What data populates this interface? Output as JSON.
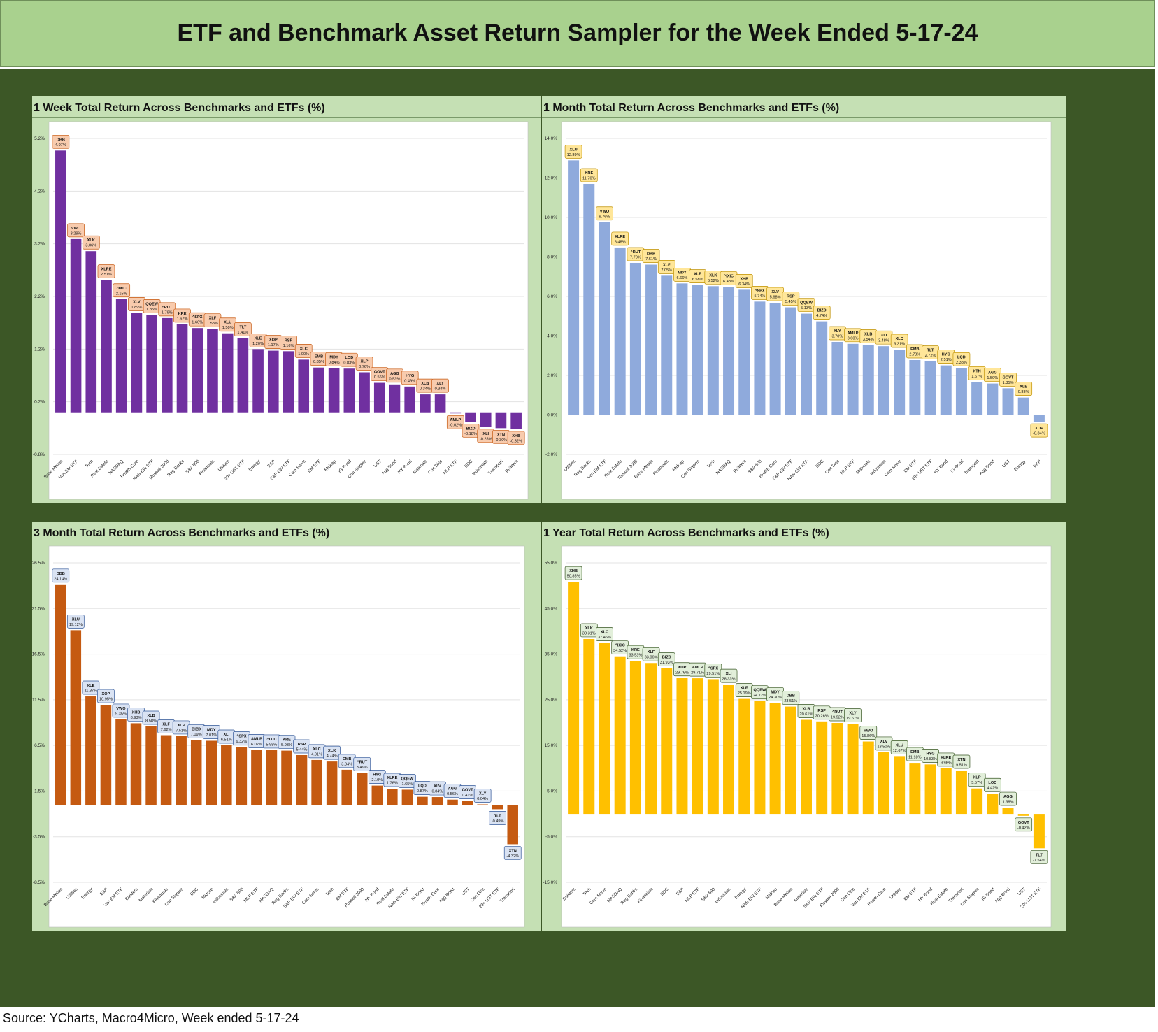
{
  "title": "ETF and Benchmark Asset Return Sampler for the Week Ended 5-17-24",
  "source": "Source: YCharts, Macro4Micro, Week ended 5-17-24",
  "colors": {
    "banner": "#a9d18e",
    "background": "#3c5726",
    "panel": "#c5e0b4"
  },
  "chart_data": [
    {
      "type": "bar",
      "title": "1 Week Total Return Across Benchmarks and ETFs (%)",
      "color": "#7030a0",
      "label_fill": "#f8cbad",
      "label_border": "#c65911",
      "ylim": [
        -0.8,
        5.2
      ],
      "yticks": [
        "-0.8%",
        "0.2%",
        "1.2%",
        "2.2%",
        "3.2%",
        "4.2%",
        "5.2%"
      ],
      "ytick_values": [
        -0.8,
        0.2,
        1.2,
        2.2,
        3.2,
        4.2,
        5.2
      ],
      "categories": [
        "Base Metals",
        "Van EM ETF",
        "Tech",
        "Real Estate",
        "NASDAQ",
        "Health Care",
        "NAS-EW ETF",
        "Russell 2000",
        "Reg Banks",
        "S&P 500",
        "Financials",
        "Utilities",
        "20+ UST ETF",
        "Energy",
        "E&P",
        "S&P EW ETF",
        "Com Servc",
        "EM ETF",
        "Midcap",
        "IG Bond",
        "Con Staples",
        "UST",
        "Agg Bond",
        "HY Bond",
        "Materials",
        "Con Disc",
        "MLP ETF",
        "BDC",
        "Industrials",
        "Transport",
        "Builders"
      ],
      "tickers": [
        "DBB",
        "VWO",
        "XLK",
        "XLRE",
        "^IXIC",
        "XLV",
        "QQEW",
        "^RUT",
        "KRE",
        "^SPX",
        "XLF",
        "XLU",
        "TLT",
        "XLE",
        "XOP",
        "RSP",
        "XLC",
        "EMB",
        "MDY",
        "LQD",
        "XLP",
        "GOVT",
        "AGG",
        "HYG",
        "XLB",
        "XLY",
        "AMLP",
        "BIZD",
        "XLI",
        "XTN",
        "XHB"
      ],
      "values": [
        4.97,
        3.29,
        3.06,
        2.51,
        2.15,
        1.89,
        1.85,
        1.79,
        1.67,
        1.6,
        1.58,
        1.5,
        1.41,
        1.2,
        1.17,
        1.16,
        1.0,
        0.85,
        0.84,
        0.83,
        0.76,
        0.56,
        0.53,
        0.49,
        0.34,
        0.34,
        -0.02,
        -0.18,
        -0.28,
        -0.3,
        -0.32
      ],
      "value_labels": [
        "4.97%",
        "3.29%",
        "3.06%",
        "2.51%",
        "2.15%",
        "1.89%",
        "1.85%",
        "1.79%",
        "1.67%",
        "1.60%",
        "1.58%",
        "1.50%",
        "1.41%",
        "1.20%",
        "1.17%",
        "1.16%",
        "1.00%",
        "0.85%",
        "0.84%",
        "0.83%",
        "0.76%",
        "0.56%",
        "0.53%",
        "0.49%",
        "0.34%",
        "0.34%",
        "-0.02%",
        "-0.18%",
        "-0.28%",
        "-0.30%",
        "-0.32%"
      ]
    },
    {
      "type": "bar",
      "title": "1 Month Total Return Across Benchmarks and ETFs (%)",
      "color": "#8faadc",
      "label_fill": "#ffe699",
      "label_border": "#bf9000",
      "ylim": [
        -2.0,
        14.0
      ],
      "yticks": [
        "-2.0%",
        "0.0%",
        "2.0%",
        "4.0%",
        "6.0%",
        "8.0%",
        "10.0%",
        "12.0%",
        "14.0%"
      ],
      "ytick_values": [
        -2,
        0,
        2,
        4,
        6,
        8,
        10,
        12,
        14
      ],
      "categories": [
        "Utilities",
        "Reg Banks",
        "Van EM ETF",
        "Real Estate",
        "Russell 2000",
        "Base Metals",
        "Financials",
        "Midcap",
        "Con Staples",
        "Tech",
        "NASDAQ",
        "Builders",
        "S&P 500",
        "Health Care",
        "S&P EW ETF",
        "NAS-EW ETF",
        "BDC",
        "Con Disc",
        "MLP ETF",
        "Materials",
        "Industrials",
        "Com Servc",
        "EM ETF",
        "20+ UST ETF",
        "HY Bond",
        "IG Bond",
        "Transport",
        "Agg Bond",
        "UST",
        "Energy",
        "E&P"
      ],
      "tickers": [
        "XLU",
        "KRE",
        "VWO",
        "XLRE",
        "^RUT",
        "DBB",
        "XLF",
        "MDY",
        "XLP",
        "XLK",
        "^IXIC",
        "XHB",
        "^SPX",
        "XLV",
        "RSP",
        "QQEW",
        "BIZD",
        "XLY",
        "AMLP",
        "XLB",
        "XLI",
        "XLC",
        "EMB",
        "TLT",
        "HYG",
        "LQD",
        "XTN",
        "AGG",
        "GOVT",
        "XLE",
        "XOP"
      ],
      "values": [
        12.89,
        11.7,
        9.76,
        8.48,
        7.7,
        7.61,
        7.05,
        6.66,
        6.58,
        6.52,
        6.48,
        6.34,
        5.74,
        5.68,
        5.45,
        5.13,
        4.74,
        3.7,
        3.6,
        3.54,
        3.48,
        3.31,
        2.78,
        2.72,
        2.51,
        2.38,
        1.67,
        1.59,
        1.35,
        0.88,
        -0.34
      ],
      "value_labels": [
        "12.89%",
        "11.70%",
        "9.76%",
        "8.48%",
        "7.70%",
        "7.61%",
        "7.05%",
        "6.66%",
        "6.58%",
        "6.52%",
        "6.48%",
        "6.34%",
        "5.74%",
        "5.68%",
        "5.45%",
        "5.13%",
        "4.74%",
        "3.70%",
        "3.60%",
        "3.54%",
        "3.48%",
        "3.31%",
        "2.78%",
        "2.72%",
        "2.51%",
        "2.38%",
        "1.67%",
        "1.59%",
        "1.35%",
        "0.88%",
        "-0.34%"
      ]
    },
    {
      "type": "bar",
      "title": "3 Month Total Return Across Benchmarks and ETFs (%)",
      "color": "#c55a11",
      "label_fill": "#dae3f3",
      "label_border": "#2f5597",
      "ylim": [
        -8.5,
        26.5
      ],
      "yticks": [
        "-8.5%",
        "-3.5%",
        "1.5%",
        "6.5%",
        "11.5%",
        "16.5%",
        "21.5%",
        "26.5%"
      ],
      "ytick_values": [
        -8.5,
        -3.5,
        1.5,
        6.5,
        11.5,
        16.5,
        21.5,
        26.5
      ],
      "categories": [
        "Base Metals",
        "Utilities",
        "Energy",
        "E&P",
        "Van EM ETF",
        "Builders",
        "Materials",
        "Financials",
        "Con Staples",
        "BDC",
        "Midcap",
        "Industrials",
        "S&P 500",
        "MLP ETF",
        "NASDAQ",
        "Reg Banks",
        "S&P EW ETF",
        "Com Servc",
        "Tech",
        "EM ETF",
        "Russell 2000",
        "HY Bond",
        "Real Estate",
        "NAS-EW ETF",
        "IG Bond",
        "Health Care",
        "Agg Bond",
        "UST",
        "Con Disc",
        "20+ UST ETF",
        "Transport"
      ],
      "tickers": [
        "DBB",
        "XLU",
        "XLE",
        "XOP",
        "VWO",
        "XHB",
        "XLB",
        "XLF",
        "XLP",
        "BIZD",
        "MDY",
        "XLI",
        "^SPX",
        "AMLP",
        "^IXIC",
        "KRE",
        "RSP",
        "XLC",
        "XLK",
        "EMB",
        "^RUT",
        "HYG",
        "XLRE",
        "QQEW",
        "LQD",
        "XLV",
        "AGG",
        "GOVT",
        "XLY",
        "TLT",
        "XTN"
      ],
      "values": [
        24.14,
        19.12,
        11.87,
        10.95,
        9.35,
        8.93,
        8.58,
        7.62,
        7.51,
        7.09,
        7.01,
        6.51,
        6.32,
        6.02,
        5.98,
        5.93,
        5.44,
        4.91,
        4.74,
        3.84,
        3.49,
        2.1,
        1.76,
        1.65,
        0.87,
        0.84,
        0.56,
        0.41,
        0.04,
        -0.49,
        -4.32
      ],
      "value_labels": [
        "24.14%",
        "19.12%",
        "11.87%",
        "10.95%",
        "9.35%",
        "8.93%",
        "8.58%",
        "7.62%",
        "7.51%",
        "7.09%",
        "7.01%",
        "6.51%",
        "6.32%",
        "6.02%",
        "5.98%",
        "5.93%",
        "5.44%",
        "4.91%",
        "4.74%",
        "3.84%",
        "3.49%",
        "2.10%",
        "1.76%",
        "1.65%",
        "0.87%",
        "0.84%",
        "0.56%",
        "0.41%",
        "0.04%",
        "-0.49%",
        "-4.32%"
      ]
    },
    {
      "type": "bar",
      "title": "1 Year Total Return Across Benchmarks and ETFs (%)",
      "color": "#ffc000",
      "label_fill": "#e2efda",
      "label_border": "#375623",
      "ylim": [
        -15.0,
        55.0
      ],
      "yticks": [
        "-15.0%",
        "-5.0%",
        "5.0%",
        "15.0%",
        "25.0%",
        "35.0%",
        "45.0%",
        "55.0%"
      ],
      "ytick_values": [
        -15,
        -5,
        5,
        15,
        25,
        35,
        45,
        55
      ],
      "categories": [
        "Builders",
        "Tech",
        "Com Servc",
        "NASDAQ",
        "Reg Banks",
        "Financials",
        "BDC",
        "E&P",
        "MLP ETF",
        "S&P 500",
        "Industrials",
        "Energy",
        "NAS-EW ETF",
        "Midcap",
        "Base Metals",
        "Materials",
        "S&P EW ETF",
        "Russell 2000",
        "Con Disc",
        "Van EM ETF",
        "Health Care",
        "Utilities",
        "EM ETF",
        "HY Bond",
        "Real Estate",
        "Transport",
        "Con Staples",
        "IG Bond",
        "Agg Bond",
        "UST",
        "20+ UST ETF"
      ],
      "tickers": [
        "XHB",
        "XLK",
        "XLC",
        "^IXIC",
        "KRE",
        "XLF",
        "BIZD",
        "XOP",
        "AMLP",
        "^SPX",
        "XLI",
        "XLE",
        "QQEW",
        "MDY",
        "DBB",
        "XLB",
        "RSP",
        "^RUT",
        "XLY",
        "VWO",
        "XLV",
        "XLU",
        "EMB",
        "HYG",
        "XLRE",
        "XTN",
        "XLP",
        "LQD",
        "AGG",
        "GOVT",
        "TLT"
      ],
      "values": [
        50.85,
        38.31,
        37.46,
        34.52,
        33.53,
        33.06,
        31.93,
        29.76,
        29.71,
        29.51,
        28.33,
        25.19,
        24.72,
        24.3,
        23.51,
        20.61,
        20.26,
        19.92,
        19.67,
        15.86,
        13.5,
        12.67,
        11.18,
        10.83,
        9.98,
        9.51,
        5.57,
        4.42,
        1.38,
        -0.42,
        -7.54
      ],
      "value_labels": [
        "50.85%",
        "38.31%",
        "37.46%",
        "34.52%",
        "33.53%",
        "33.06%",
        "31.93%",
        "29.76%",
        "29.71%",
        "29.51%",
        "28.33%",
        "25.19%",
        "24.72%",
        "24.30%",
        "23.51%",
        "20.61%",
        "20.26%",
        "19.92%",
        "19.67%",
        "15.86%",
        "13.50%",
        "12.67%",
        "11.18%",
        "10.83%",
        "9.98%",
        "9.51%",
        "5.57%",
        "4.42%",
        "1.38%",
        "-0.42%",
        "-7.54%"
      ]
    }
  ]
}
